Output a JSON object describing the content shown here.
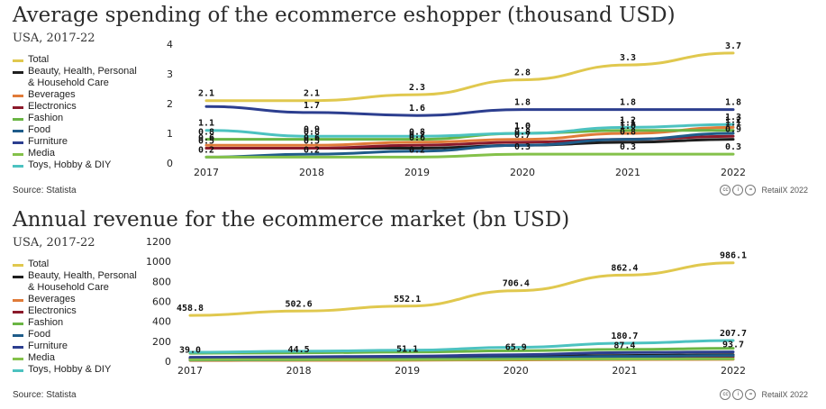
{
  "chart_data": [
    {
      "type": "line",
      "title": "Average spending of the ecommerce eshopper (thousand USD)",
      "subtitle": "USA, 2017-22",
      "source": "Source: Statista",
      "brand": "RetailX 2022",
      "x": [
        "2017",
        "2018",
        "2019",
        "2020",
        "2021",
        "2022"
      ],
      "ylim": [
        0,
        4
      ],
      "yticks": [
        0,
        1,
        2,
        3,
        4
      ],
      "legend_position": "left",
      "series": [
        {
          "name": "Total",
          "color": "#e0c84e",
          "values": [
            2.1,
            2.1,
            2.3,
            2.8,
            3.3,
            3.7
          ]
        },
        {
          "name": "Beauty, Health, Personal\n& Household Care",
          "color": "#1e1e1e",
          "values": [
            0.5,
            0.5,
            0.5,
            0.6,
            0.7,
            0.8
          ]
        },
        {
          "name": "Beverages",
          "color": "#e07b39",
          "values": [
            0.6,
            0.6,
            0.7,
            0.8,
            1.0,
            1.2
          ]
        },
        {
          "name": "Electronics",
          "color": "#8b1a2b",
          "values": [
            0.5,
            0.5,
            0.6,
            0.7,
            0.8,
            0.9
          ]
        },
        {
          "name": "Fashion",
          "color": "#6ab544",
          "values": [
            0.8,
            0.8,
            0.8,
            1.0,
            1.1,
            1.1
          ]
        },
        {
          "name": "Food",
          "color": "#1f5c8a",
          "values": [
            0.2,
            0.3,
            0.4,
            0.6,
            0.8,
            1.0
          ]
        },
        {
          "name": "Furniture",
          "color": "#2c3e8f",
          "values": [
            1.9,
            1.7,
            1.6,
            1.8,
            1.8,
            1.8
          ]
        },
        {
          "name": "Media",
          "color": "#84c14a",
          "values": [
            0.2,
            0.2,
            0.2,
            0.3,
            0.3,
            0.3
          ]
        },
        {
          "name": "Toys, Hobby & DIY",
          "color": "#4cc2c0",
          "values": [
            1.1,
            0.9,
            0.9,
            1.0,
            1.2,
            1.3
          ]
        }
      ],
      "data_labels": [
        {
          "series": 0,
          "points": [
            0,
            1,
            2,
            3,
            4,
            5
          ],
          "text": [
            "2.1",
            "2.1",
            "2.3",
            "2.8",
            "3.3",
            "3.7"
          ]
        },
        {
          "series": 6,
          "points": [
            1,
            2,
            3,
            4,
            5
          ],
          "text": [
            "1.7",
            "1.6",
            "1.8",
            "1.8",
            "1.8"
          ]
        },
        {
          "series": 8,
          "points": [
            0,
            1,
            3,
            4,
            5
          ],
          "text": [
            "1.1",
            "0.9",
            "1.0",
            "1.2",
            "1.3"
          ]
        },
        {
          "series": 4,
          "points": [
            0,
            1,
            2,
            3,
            4,
            5
          ],
          "text": [
            "0.8",
            "0.8",
            "0.8",
            "1.0",
            "1.1",
            "1.1"
          ]
        },
        {
          "series": 2,
          "points": [
            0,
            1,
            2,
            3,
            4,
            5
          ],
          "text": [
            "0.6",
            "0.6",
            "0.7",
            "0.8",
            "1.0",
            "1.2"
          ]
        },
        {
          "series": 3,
          "points": [
            0,
            1,
            2,
            3,
            4,
            5
          ],
          "text": [
            "0.5",
            "0.5",
            "0.6",
            "0.7",
            "0.8",
            "0.9"
          ]
        },
        {
          "series": 7,
          "points": [
            0,
            1,
            2,
            3,
            4,
            5
          ],
          "text": [
            "0.2",
            "0.2",
            "0.2",
            "0.3",
            "0.3",
            "0.3"
          ]
        }
      ]
    },
    {
      "type": "line",
      "title": "Annual revenue for the ecommerce market (bn USD)",
      "subtitle": "USA, 2017-22",
      "source": "Source: Statista",
      "brand": "RetailX 2022",
      "x": [
        "2017",
        "2018",
        "2019",
        "2020",
        "2021",
        "2022"
      ],
      "ylim": [
        0,
        1200
      ],
      "yticks": [
        0,
        200,
        400,
        600,
        800,
        1000,
        1200
      ],
      "legend_position": "left",
      "series": [
        {
          "name": "Total",
          "color": "#e0c84e",
          "values": [
            458.8,
            502.6,
            552.1,
            706.4,
            862.4,
            986.1
          ]
        },
        {
          "name": "Beauty, Health, Personal\n& Household Care",
          "color": "#1e1e1e",
          "values": [
            30,
            33,
            38,
            48,
            58,
            65
          ]
        },
        {
          "name": "Beverages",
          "color": "#e07b39",
          "values": [
            8,
            9,
            10,
            14,
            17,
            19
          ]
        },
        {
          "name": "Electronics",
          "color": "#8b1a2b",
          "values": [
            20,
            22,
            25,
            33,
            40,
            45
          ]
        },
        {
          "name": "Fashion",
          "color": "#6ab544",
          "values": [
            80,
            85,
            92,
            105,
            118,
            130
          ]
        },
        {
          "name": "Food",
          "color": "#1f5c8a",
          "values": [
            12,
            16,
            22,
            35,
            48,
            58
          ]
        },
        {
          "name": "Furniture",
          "color": "#2c3e8f",
          "values": [
            39.0,
            44.5,
            51.1,
            65.9,
            87.4,
            93.7
          ]
        },
        {
          "name": "Media",
          "color": "#84c14a",
          "values": [
            15,
            16,
            17,
            20,
            22,
            24
          ]
        },
        {
          "name": "Toys, Hobby & DIY",
          "color": "#4cc2c0",
          "values": [
            90,
            100,
            110,
            140,
            180.7,
            207.7
          ]
        }
      ],
      "data_labels": [
        {
          "series": 0,
          "points": [
            0,
            1,
            2,
            3,
            4,
            5
          ],
          "text": [
            "458.8",
            "502.6",
            "552.1",
            "706.4",
            "862.4",
            "986.1"
          ]
        },
        {
          "series": 8,
          "points": [
            4,
            5
          ],
          "text": [
            "180.7",
            "207.7"
          ]
        },
        {
          "series": 6,
          "points": [
            0,
            1,
            2,
            3,
            4,
            5
          ],
          "text": [
            "39.0",
            "44.5",
            "51.1",
            "65.9",
            "87.4",
            "93.7"
          ]
        }
      ]
    }
  ]
}
